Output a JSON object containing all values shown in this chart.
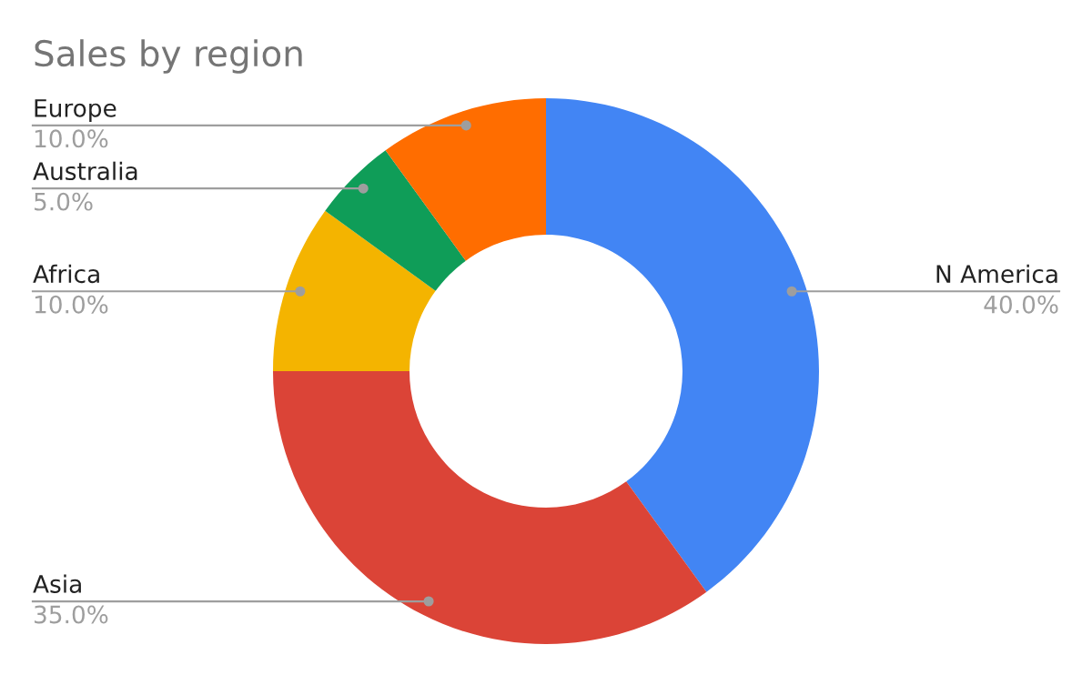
{
  "chart_data": {
    "type": "donut",
    "title": "Sales by region",
    "categories": [
      "N America",
      "Asia",
      "Africa",
      "Australia",
      "Europe"
    ],
    "values": [
      40,
      35,
      10,
      5,
      10
    ],
    "colors": [
      "#4285f4",
      "#db4437",
      "#f4b400",
      "#0f9d58",
      "#ff6d00"
    ],
    "value_labels": [
      "40.0%",
      "35.0%",
      "10.0%",
      "5.0%",
      "10.0%"
    ],
    "legend": false
  }
}
